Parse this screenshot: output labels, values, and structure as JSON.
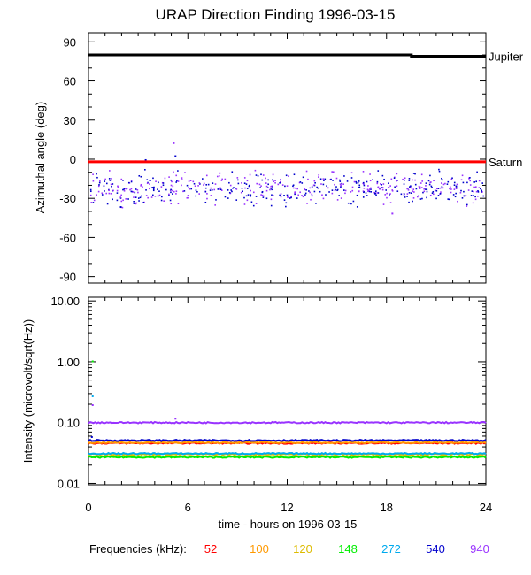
{
  "chart_data": [
    {
      "type": "scatter",
      "title": "URAP Direction Finding  1996-03-15",
      "ylabel": "Azimuthal angle (deg)",
      "xlim": [
        0,
        24
      ],
      "ylim": [
        -95,
        97
      ],
      "yticks": [
        90,
        60,
        30,
        0,
        -30,
        -60,
        -90
      ],
      "ytick_labels": [
        "90",
        "60",
        "30",
        "0",
        "-30",
        "-60",
        "-90"
      ],
      "reference_lines": [
        {
          "name": "Jupiter",
          "color": "#000000",
          "x": [
            0,
            19.5,
            19.5,
            24
          ],
          "y": [
            80,
            80,
            79,
            79
          ]
        },
        {
          "name": "Saturn",
          "color": "#ff0000",
          "x": [
            0,
            24
          ],
          "y": [
            -2,
            -2
          ]
        }
      ],
      "scatter_band": {
        "colors": [
          "#0000cc",
          "#9933ff"
        ],
        "y_center": -22,
        "y_spread": 8
      },
      "outliers": [
        {
          "x": 2.8,
          "y": -1,
          "color": "#9933ff"
        },
        {
          "x": 3.4,
          "y": 0,
          "color": "#0000cc"
        },
        {
          "x": 5.1,
          "y": 13,
          "color": "#9933ff"
        },
        {
          "x": 5.2,
          "y": 3,
          "color": "#0000cc"
        },
        {
          "x": 1.9,
          "y": -36,
          "color": "#0000cc"
        },
        {
          "x": 18.3,
          "y": -41,
          "color": "#9933ff"
        }
      ]
    },
    {
      "type": "line",
      "ylabel": "Intensity (microvolt/sqrt(Hz))",
      "xlabel": "time - hours on 1996-03-15",
      "xlim": [
        0,
        24
      ],
      "ylim": [
        0.0095,
        11.5
      ],
      "yscale": "log",
      "xticks": [
        0,
        6,
        12,
        18,
        24
      ],
      "xtick_labels": [
        "0",
        "6",
        "12",
        "18",
        "24"
      ],
      "yticks": [
        10,
        1,
        0.1,
        0.01
      ],
      "ytick_labels": [
        "10.00",
        "1.00",
        "0.10",
        "0.01"
      ],
      "series": [
        {
          "name": "52",
          "color": "#ff0000",
          "level": 0.046
        },
        {
          "name": "100",
          "color": "#ff9900",
          "level": 0.047
        },
        {
          "name": "120",
          "color": "#ddbb00",
          "level": 0.03
        },
        {
          "name": "148",
          "color": "#00ee00",
          "level": 0.027
        },
        {
          "name": "272",
          "color": "#00aaee",
          "level": 0.031
        },
        {
          "name": "540",
          "color": "#0000cc",
          "level": 0.051
        },
        {
          "name": "940",
          "color": "#9933ff",
          "level": 0.1
        }
      ],
      "spikes": [
        {
          "x": 0.2,
          "y": 1.05,
          "color": "#00ee00"
        },
        {
          "x": 0.2,
          "y": 0.28,
          "color": "#00aaee"
        },
        {
          "x": 0.2,
          "y": 0.2,
          "color": "#9933ff"
        },
        {
          "x": 0.15,
          "y": 0.06,
          "color": "#0000cc"
        },
        {
          "x": 5.2,
          "y": 0.12,
          "color": "#9933ff"
        }
      ]
    }
  ],
  "legend": {
    "label": "Frequencies (kHz):",
    "placement": "bottom"
  }
}
